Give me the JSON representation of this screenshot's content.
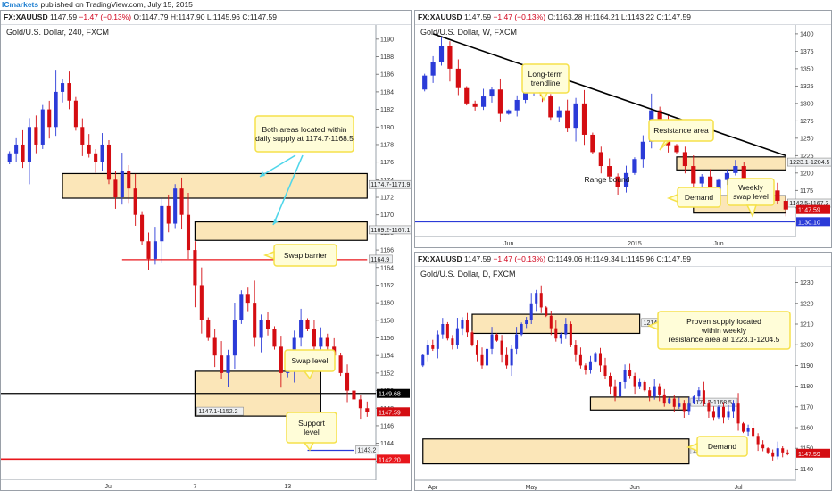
{
  "header": {
    "brand": "ICmarkets",
    "publish_text": " published on TradingView.com, July 15, 2015",
    "ticker": "FX:XAUUSD",
    "last": "1147.59",
    "change": "−1.47 (−0.13%)",
    "ohlc": "O:1147.79 H:1147.90 L:1145.96 C:1147.59"
  },
  "colors": {
    "up": "#2b3bd8",
    "down": "#d40d12",
    "zone_fill": "#fbe6b8",
    "callout_fill": "#fffdd8",
    "callout_border": "#f5e14a",
    "arrow": "#4fd6ea"
  },
  "chart_data": [
    {
      "id": "h4",
      "type": "candlestick",
      "title": "Gold/U.S. Dollar, 240, FXCM",
      "ticker": "FX:XAUUSD",
      "change": "−1.47 (−0.13%)",
      "ohlc": "O:1147.79 H:1147.90 L:1145.96 C:1147.59",
      "ylim": [
        1140,
        1191
      ],
      "ytick_step": 2,
      "yticks": [
        1142,
        1144,
        1146,
        1148,
        1150,
        1152,
        1154,
        1156,
        1158,
        1160,
        1162,
        1164,
        1166,
        1168,
        1170,
        1172,
        1174,
        1176,
        1178,
        1180,
        1182,
        1184,
        1186,
        1188,
        1190
      ],
      "xticks": [
        {
          "label": "Jul",
          "i": 15
        },
        {
          "label": "7",
          "i": 28
        },
        {
          "label": "13",
          "i": 42
        }
      ],
      "n_candles": 55,
      "closes": [
        1177,
        1178,
        1176,
        1180,
        1178,
        1182,
        1180,
        1184,
        1185,
        1183,
        1180,
        1178,
        1177,
        1176,
        1178,
        1174,
        1172,
        1175,
        1173,
        1170,
        1167,
        1165,
        1167,
        1171,
        1169,
        1173,
        1170,
        1166,
        1162,
        1158,
        1156,
        1154,
        1152,
        1154,
        1158,
        1161,
        1160,
        1156,
        1158,
        1157,
        1155,
        1152,
        1153,
        1156,
        1158,
        1157,
        1155,
        1156,
        1155,
        1154,
        1152,
        1150,
        1149,
        1148,
        1147.59
      ],
      "zones": [
        {
          "label": "1174.7-1171.9",
          "lo": 1171.9,
          "hi": 1174.7
        },
        {
          "label": "1169.2-1167.1",
          "lo": 1167.1,
          "hi": 1169.2
        },
        {
          "label": "1147.1-1152.2",
          "lo": 1147.1,
          "hi": 1152.2
        }
      ],
      "hlines": [
        {
          "value": 1164.9,
          "label": "1164.9",
          "color": "#e8161b"
        },
        {
          "value": 1149.68,
          "label": "1149.68",
          "color": "#000000"
        },
        {
          "value": 1143.2,
          "label": "1143.2",
          "color": "#2b3bd8"
        },
        {
          "value": 1142.2,
          "label": "1142.20",
          "color": "#e8161b"
        }
      ],
      "price_label": "1147.59",
      "annotations": [
        "Both areas located within daily supply at 1174.7-1168.5",
        "Swap barrier",
        "Swap level",
        "Support level"
      ]
    },
    {
      "id": "weekly",
      "type": "candlestick",
      "title": "Gold/U.S. Dollar, W, FXCM",
      "ticker": "FX:XAUUSD",
      "change": "−1.47 (−0.13%)",
      "ohlc": "O:1163.28 H:1164.21 L:1143.22 C:1147.59",
      "ylim": [
        1110,
        1405
      ],
      "ytick_step": 25,
      "yticks": [
        1150,
        1175,
        1200,
        1225,
        1250,
        1275,
        1300,
        1325,
        1350,
        1375,
        1400
      ],
      "xticks": [
        {
          "label": "Jun",
          "i": 10
        },
        {
          "label": "2015",
          "i": 25
        },
        {
          "label": "Jun",
          "i": 35
        }
      ],
      "n_candles": 44,
      "closes": [
        1340,
        1360,
        1382,
        1350,
        1322,
        1300,
        1295,
        1310,
        1320,
        1285,
        1290,
        1305,
        1320,
        1330,
        1310,
        1280,
        1290,
        1265,
        1300,
        1255,
        1230,
        1210,
        1195,
        1180,
        1200,
        1220,
        1245,
        1290,
        1270,
        1240,
        1230,
        1210,
        1185,
        1195,
        1175,
        1190,
        1200,
        1210,
        1185,
        1180,
        1170,
        1175,
        1160,
        1147.59
      ],
      "zones": [
        {
          "label": "1223.1-1204.5",
          "lo": 1204.5,
          "hi": 1223.1
        },
        {
          "label": "1142.5-1167.3",
          "lo": 1142.5,
          "hi": 1167.3
        }
      ],
      "hlines": [
        {
          "value": 1130.1,
          "label": "1130.10",
          "color": "#2b3bd8"
        }
      ],
      "price_label": "1147.59",
      "annotations": [
        "Long-term trendline",
        "Resistance area",
        "Range bound",
        "Demand",
        "Weekly swap level"
      ]
    },
    {
      "id": "daily",
      "type": "candlestick",
      "title": "Gold/U.S. Dollar, D, FXCM",
      "ticker": "FX:XAUUSD",
      "change": "−1.47 (−0.13%)",
      "ohlc": "O:1149.06 H:1149.34 L:1145.96 C:1147.59",
      "ylim": [
        1135,
        1235
      ],
      "ytick_step": 10,
      "yticks": [
        1140,
        1150,
        1160,
        1170,
        1180,
        1190,
        1200,
        1210,
        1220,
        1230
      ],
      "xticks": [
        {
          "label": "Apr",
          "i": 2
        },
        {
          "label": "May",
          "i": 22
        },
        {
          "label": "Jun",
          "i": 43
        },
        {
          "label": "Jul",
          "i": 64
        }
      ],
      "n_candles": 75,
      "closes": [
        1195,
        1200,
        1198,
        1205,
        1210,
        1203,
        1200,
        1208,
        1212,
        1206,
        1200,
        1195,
        1190,
        1198,
        1205,
        1202,
        1195,
        1190,
        1198,
        1205,
        1210,
        1212,
        1220,
        1225,
        1218,
        1214,
        1208,
        1203,
        1205,
        1210,
        1200,
        1195,
        1190,
        1188,
        1192,
        1196,
        1190,
        1185,
        1180,
        1175,
        1182,
        1188,
        1185,
        1180,
        1182,
        1178,
        1175,
        1180,
        1176,
        1172,
        1174,
        1170,
        1172,
        1168,
        1172,
        1175,
        1178,
        1172,
        1168,
        1165,
        1170,
        1165,
        1168,
        1172,
        1162,
        1158,
        1160,
        1156,
        1152,
        1150,
        1148,
        1146,
        1150,
        1148,
        1147.59
      ],
      "zones": [
        {
          "label": "1214.7-1205.5",
          "lo": 1205.5,
          "hi": 1214.7
        },
        {
          "label": "1174.7-1168.5",
          "lo": 1168.5,
          "hi": 1174.7
        },
        {
          "label": "1142.5-1154.5",
          "lo": 1142.5,
          "hi": 1154.5
        }
      ],
      "hlines": [],
      "price_label": "1147.59",
      "annotations": [
        "Proven supply located within weekly resistance area at 1223.1-1204.5",
        "Demand"
      ]
    }
  ]
}
